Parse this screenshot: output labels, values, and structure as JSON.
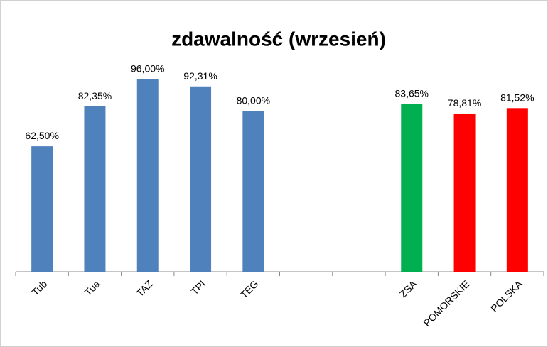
{
  "chart_data": {
    "type": "bar",
    "title": "zdawalność (wrzesień)",
    "categories": [
      "Tub",
      "Tua",
      "TAZ",
      "TPI",
      "TEG",
      null,
      null,
      "ZSA",
      "POMORSKIE",
      "POLSKA"
    ],
    "values": [
      62.5,
      82.35,
      96,
      92.31,
      80,
      null,
      null,
      83.65,
      78.81,
      81.52
    ],
    "value_labels": [
      "62,50%",
      "82,35%",
      "96,00%",
      "92,31%",
      "80,00%",
      null,
      null,
      "83,65%",
      "78,81%",
      "81,52%"
    ],
    "colors": [
      "#4f81bd",
      "#4f81bd",
      "#4f81bd",
      "#4f81bd",
      "#4f81bd",
      null,
      null,
      "#00b050",
      "#ff0000",
      "#ff0000"
    ],
    "ylim": [
      0,
      100
    ]
  }
}
